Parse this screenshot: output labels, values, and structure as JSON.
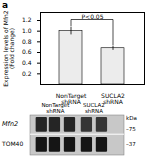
{
  "chart_data": {
    "type": "bar",
    "categories": [
      "NonTarget\nshRNA",
      "SUCLA2\nshRNA"
    ],
    "values": [
      1.0,
      0.68
    ],
    "errors": [
      0.07,
      0.04
    ],
    "colors": [
      "#ececec",
      "#ececec"
    ],
    "ylabel": "Expression levels of Mfn2\n(Fold change)",
    "ylim": [
      0,
      1.35
    ],
    "yticks": [
      0.2,
      0.4,
      0.6,
      0.8,
      {
        "value": 1.0,
        "label": "1.0"
      },
      1.2
    ],
    "annotations": [
      "a",
      "P<0.05",
      "Mfn2",
      "TOM40",
      "kDa",
      "–75",
      "–37"
    ]
  }
}
